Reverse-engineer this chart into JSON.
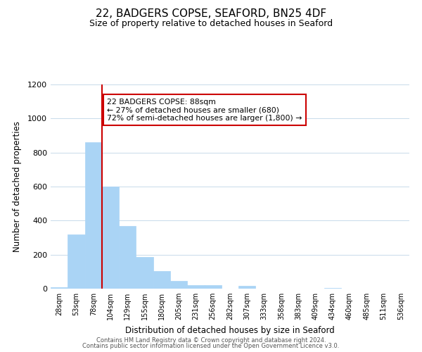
{
  "title": "22, BADGERS COPSE, SEAFORD, BN25 4DF",
  "subtitle": "Size of property relative to detached houses in Seaford",
  "xlabel": "Distribution of detached houses by size in Seaford",
  "ylabel": "Number of detached properties",
  "bar_labels": [
    "28sqm",
    "53sqm",
    "78sqm",
    "104sqm",
    "129sqm",
    "155sqm",
    "180sqm",
    "205sqm",
    "231sqm",
    "256sqm",
    "282sqm",
    "307sqm",
    "333sqm",
    "358sqm",
    "383sqm",
    "409sqm",
    "434sqm",
    "460sqm",
    "485sqm",
    "511sqm",
    "536sqm"
  ],
  "bar_values": [
    10,
    320,
    860,
    600,
    370,
    185,
    105,
    45,
    20,
    20,
    0,
    15,
    0,
    0,
    0,
    0,
    5,
    0,
    0,
    0,
    0
  ],
  "bar_color": "#aad4f5",
  "bar_edge_color": "#aad4f5",
  "vline_x": 2.5,
  "vline_color": "#cc0000",
  "annotation_text": "22 BADGERS COPSE: 88sqm\n← 27% of detached houses are smaller (680)\n72% of semi-detached houses are larger (1,800) →",
  "annotation_box_color": "#ffffff",
  "annotation_box_edge": "#cc0000",
  "ylim": [
    0,
    1200
  ],
  "yticks": [
    0,
    200,
    400,
    600,
    800,
    1000,
    1200
  ],
  "background_color": "#ffffff",
  "grid_color": "#c8daea",
  "title_fontsize": 11,
  "subtitle_fontsize": 9,
  "footer_line1": "Contains HM Land Registry data © Crown copyright and database right 2024.",
  "footer_line2": "Contains public sector information licensed under the Open Government Licence v3.0."
}
